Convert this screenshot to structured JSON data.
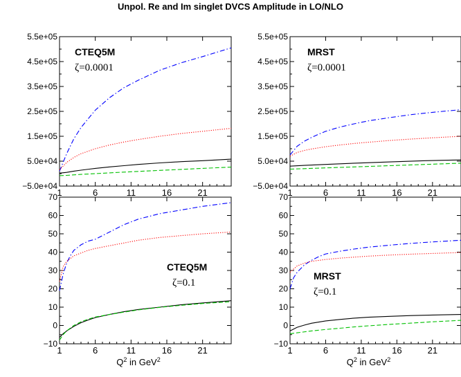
{
  "figure": {
    "title": "Unpol. Re and Im singlet DVCS Amplitude in LO/NLO",
    "xlabel_main": "Q",
    "xlabel_sup": "2",
    "xlabel_mid": " in GeV",
    "xlabel_sup2": "2"
  },
  "colors": {
    "black": "#000000",
    "blue": "#0000ff",
    "red": "#ff0000",
    "green": "#00c000"
  },
  "chart_data": [
    {
      "type": "line",
      "panel": "top-left",
      "label_pdf": "CTEQ5M",
      "label_zeta": "ζ=0.0001",
      "xlim": [
        1,
        25
      ],
      "ylim": [
        -50000,
        550000
      ],
      "xticks": [
        1,
        6,
        11,
        16,
        21
      ],
      "xtick_labels": [
        "1",
        "6",
        "11",
        "16",
        "21"
      ],
      "yticks": [
        -50000,
        50000,
        150000,
        250000,
        350000,
        450000,
        550000
      ],
      "ytick_labels": [
        "−5.0e+04",
        "5.0e+04",
        "1.5e+05",
        "2.5e+05",
        "3.5e+05",
        "4.5e+05",
        "5.5e+05"
      ],
      "show_xlabel": false,
      "series": [
        {
          "color": "blue",
          "style": "dashdot",
          "x": [
            1,
            2,
            3,
            4,
            5,
            6,
            7,
            8,
            10,
            12,
            15,
            18,
            21,
            25
          ],
          "y": [
            10000,
            80000,
            140000,
            185000,
            220000,
            255000,
            280000,
            305000,
            345000,
            375000,
            415000,
            445000,
            470000,
            505000
          ]
        },
        {
          "color": "red",
          "style": "dotted",
          "x": [
            1,
            2,
            3,
            4,
            5,
            6,
            8,
            10,
            12,
            15,
            18,
            21,
            25
          ],
          "y": [
            15000,
            45000,
            65000,
            80000,
            90000,
            100000,
            115000,
            127000,
            137000,
            150000,
            161000,
            170000,
            182000
          ]
        },
        {
          "color": "black",
          "style": "solid",
          "x": [
            1,
            2,
            3,
            4,
            6,
            8,
            10,
            12,
            15,
            18,
            21,
            25
          ],
          "y": [
            2000,
            5000,
            10000,
            14000,
            21000,
            27000,
            32000,
            37000,
            43000,
            48000,
            52000,
            58000
          ]
        },
        {
          "color": "green",
          "style": "dashed",
          "x": [
            1,
            2,
            4,
            6,
            8,
            10,
            12,
            15,
            18,
            21,
            25
          ],
          "y": [
            -8000,
            -7000,
            -3000,
            0,
            3000,
            6000,
            9000,
            13000,
            17000,
            21000,
            26000
          ]
        }
      ]
    },
    {
      "type": "line",
      "panel": "top-right",
      "label_pdf": "MRST",
      "label_zeta": "ζ=0.0001",
      "xlim": [
        1,
        25
      ],
      "ylim": [
        -50000,
        550000
      ],
      "xticks": [
        1,
        6,
        11,
        16,
        21
      ],
      "xtick_labels": [
        "1",
        "6",
        "11",
        "16",
        "21"
      ],
      "yticks": [
        -50000,
        50000,
        150000,
        250000,
        350000,
        450000,
        550000
      ],
      "ytick_labels": [
        "−5.0e+04",
        "5.0e+04",
        "1.5e+05",
        "2.5e+05",
        "3.5e+05",
        "4.5e+05",
        "5.5e+05"
      ],
      "show_xlabel": false,
      "series": [
        {
          "color": "blue",
          "style": "dashdot",
          "x": [
            1,
            2,
            3,
            4,
            5,
            6,
            8,
            10,
            12,
            15,
            18,
            21,
            25
          ],
          "y": [
            75000,
            110000,
            130000,
            145000,
            158000,
            170000,
            187000,
            200000,
            212000,
            225000,
            237000,
            246000,
            257000
          ]
        },
        {
          "color": "red",
          "style": "dotted",
          "x": [
            1,
            2,
            3,
            4,
            6,
            8,
            10,
            12,
            15,
            18,
            21,
            25
          ],
          "y": [
            70000,
            85000,
            93000,
            99000,
            108000,
            115000,
            121000,
            126000,
            133000,
            139000,
            144000,
            150000
          ]
        },
        {
          "color": "black",
          "style": "solid",
          "x": [
            1,
            3,
            6,
            10,
            15,
            20,
            25
          ],
          "y": [
            30000,
            33000,
            37000,
            42000,
            47000,
            52000,
            55000
          ]
        },
        {
          "color": "green",
          "style": "dashed",
          "x": [
            1,
            3,
            6,
            10,
            15,
            20,
            25
          ],
          "y": [
            18000,
            20000,
            23000,
            27000,
            32000,
            37000,
            42000
          ]
        }
      ]
    },
    {
      "type": "line",
      "panel": "bottom-left",
      "label_pdf": "CTEQ5M",
      "label_zeta": "ζ=0.1",
      "xlim": [
        1,
        25
      ],
      "ylim": [
        -10,
        70
      ],
      "xticks": [
        1,
        6,
        11,
        16,
        21
      ],
      "xtick_labels": [
        "1",
        "6",
        "11",
        "16",
        "21"
      ],
      "yticks": [
        -10,
        0,
        10,
        20,
        30,
        40,
        50,
        60,
        70
      ],
      "ytick_labels": [
        "−10",
        "0",
        "10",
        "20",
        "30",
        "40",
        "50",
        "60",
        "70"
      ],
      "show_xlabel": true,
      "series": [
        {
          "color": "blue",
          "style": "dashdot",
          "x": [
            1,
            1.5,
            2,
            2.5,
            3,
            4,
            5,
            6,
            7,
            8,
            10,
            12,
            15,
            18,
            21,
            25
          ],
          "y": [
            19,
            28,
            34,
            38,
            41,
            44,
            46,
            47,
            49,
            51,
            55,
            58,
            61,
            63,
            65,
            67
          ]
        },
        {
          "color": "red",
          "style": "dotted",
          "x": [
            1,
            1.5,
            2,
            2.5,
            3,
            4,
            5,
            6,
            8,
            10,
            12,
            15,
            18,
            21,
            25
          ],
          "y": [
            24,
            32,
            35,
            36.5,
            38,
            39.5,
            41,
            42,
            43.5,
            45,
            46.5,
            48,
            49,
            50,
            51
          ]
        },
        {
          "color": "black",
          "style": "solid",
          "x": [
            1,
            1.5,
            2,
            3,
            4,
            5,
            6,
            8,
            10,
            12,
            15,
            18,
            21,
            25
          ],
          "y": [
            -6.5,
            -4.5,
            -3,
            -0.5,
            1.5,
            3,
            4.3,
            6,
            7.5,
            8.7,
            10,
            11.3,
            12.3,
            13.5
          ]
        },
        {
          "color": "green",
          "style": "dashed",
          "x": [
            1,
            1.5,
            2,
            3,
            4,
            5,
            6,
            8,
            10,
            12,
            15,
            18,
            21,
            25
          ],
          "y": [
            -8,
            -5,
            -3,
            0,
            2,
            3.4,
            4.6,
            6,
            7.3,
            8.5,
            9.9,
            11,
            12,
            13
          ]
        }
      ]
    },
    {
      "type": "line",
      "panel": "bottom-right",
      "label_pdf": "MRST",
      "label_zeta": "ζ=0.1",
      "xlim": [
        1,
        25
      ],
      "ylim": [
        -10,
        70
      ],
      "xticks": [
        1,
        6,
        11,
        16,
        21
      ],
      "xtick_labels": [
        "1",
        "6",
        "11",
        "16",
        "21"
      ],
      "yticks": [
        -10,
        0,
        10,
        20,
        30,
        40,
        50,
        60,
        70
      ],
      "ytick_labels": [
        "−10",
        "0",
        "10",
        "20",
        "30",
        "40",
        "50",
        "60",
        "70"
      ],
      "show_xlabel": true,
      "series": [
        {
          "color": "blue",
          "style": "dashdot",
          "x": [
            1,
            1.5,
            2,
            3,
            4,
            5,
            6,
            8,
            10,
            12,
            15,
            18,
            21,
            25
          ],
          "y": [
            20,
            26,
            29,
            33,
            35.5,
            37.5,
            39,
            40.5,
            41.7,
            42.7,
            43.8,
            44.8,
            45.6,
            46.5
          ]
        },
        {
          "color": "red",
          "style": "dotted",
          "x": [
            1,
            2,
            3,
            4,
            6,
            8,
            10,
            12,
            15,
            18,
            21,
            25
          ],
          "y": [
            29,
            32.5,
            34,
            35,
            36,
            36.7,
            37.3,
            37.8,
            38.4,
            38.9,
            39.3,
            39.8
          ]
        },
        {
          "color": "black",
          "style": "solid",
          "x": [
            1,
            2,
            3,
            4,
            6,
            8,
            10,
            12,
            15,
            18,
            21,
            25
          ],
          "y": [
            -3,
            -1,
            0.2,
            1.2,
            2.5,
            3.3,
            4,
            4.5,
            5,
            5.4,
            5.7,
            6
          ]
        },
        {
          "color": "green",
          "style": "dashed",
          "x": [
            1,
            2,
            4,
            6,
            8,
            10,
            12,
            15,
            18,
            21,
            25
          ],
          "y": [
            -4.5,
            -4,
            -3,
            -2.2,
            -1.5,
            -0.8,
            -0.2,
            0.6,
            1.3,
            2,
            2.8
          ]
        }
      ]
    }
  ]
}
